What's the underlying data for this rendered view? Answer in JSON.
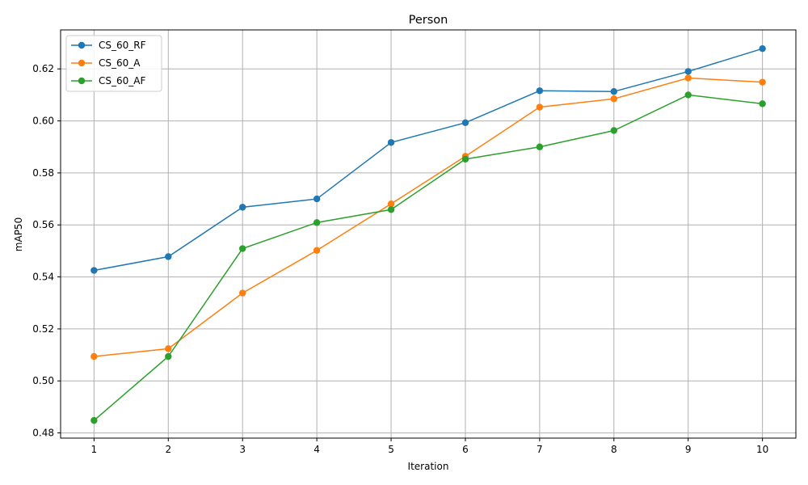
{
  "chart_data": {
    "type": "line",
    "title": "Person",
    "xlabel": "Iteration",
    "ylabel": "mAP50",
    "x": [
      1,
      2,
      3,
      4,
      5,
      6,
      7,
      8,
      9,
      10
    ],
    "xlim": [
      0.55,
      10.45
    ],
    "ylim": [
      0.478,
      0.635
    ],
    "yticks": [
      0.48,
      0.5,
      0.52,
      0.54,
      0.56,
      0.58,
      0.6,
      0.62
    ],
    "ytick_labels": [
      "0.48",
      "0.50",
      "0.52",
      "0.54",
      "0.56",
      "0.58",
      "0.60",
      "0.62"
    ],
    "xtick_labels": [
      "1",
      "2",
      "3",
      "4",
      "5",
      "6",
      "7",
      "8",
      "9",
      "10"
    ],
    "grid": true,
    "legend_position": "top-left",
    "series": [
      {
        "name": "CS_60_RF",
        "color": "#1f77b4",
        "values": [
          0.5425,
          0.5478,
          0.5668,
          0.57,
          0.5917,
          0.5993,
          0.6116,
          0.6113,
          0.619,
          0.6278
        ]
      },
      {
        "name": "CS_60_A",
        "color": "#ff7f0e",
        "values": [
          0.5094,
          0.5124,
          0.5338,
          0.5502,
          0.5681,
          0.5864,
          0.6053,
          0.6085,
          0.6165,
          0.6149
        ]
      },
      {
        "name": "CS_60_AF",
        "color": "#2ca02c",
        "values": [
          0.4848,
          0.5094,
          0.5509,
          0.5609,
          0.5659,
          0.5853,
          0.59,
          0.5963,
          0.61,
          0.6066
        ]
      }
    ]
  }
}
